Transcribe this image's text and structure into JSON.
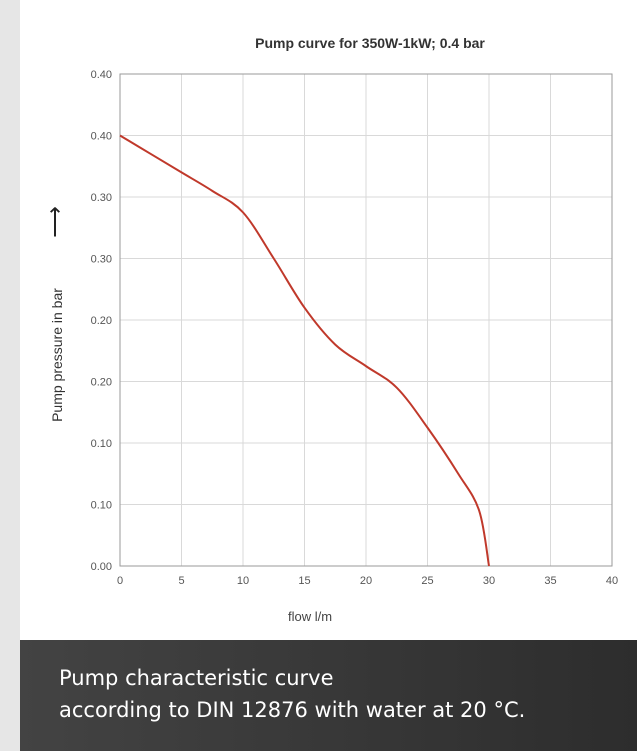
{
  "chart_data": {
    "type": "line",
    "title": "Pump curve for 350W-1kW; 0.4 bar",
    "xlabel": "flow l/m",
    "ylabel": "Pump pressure in bar",
    "ylabel_arrow": "⟶",
    "x_ticks": [
      "0",
      "5",
      "10",
      "15",
      "20",
      "25",
      "30",
      "35",
      "40"
    ],
    "y_ticks": [
      "0.00",
      "0.10",
      "0.10",
      "0.20",
      "0.20",
      "0.30",
      "0.30",
      "0.40",
      "0.40"
    ],
    "xlim": [
      0,
      40
    ],
    "ylim": [
      0,
      0.8
    ],
    "grid": true,
    "series": [
      {
        "color": "#c0392b",
        "x": [
          0,
          2.5,
          5,
          7.5,
          10,
          12.5,
          15,
          17.5,
          20,
          22.5,
          25,
          27.5,
          29.2,
          30
        ],
        "y": [
          0.7,
          0.67,
          0.64,
          0.61,
          0.575,
          0.5,
          0.42,
          0.36,
          0.325,
          0.29,
          0.225,
          0.15,
          0.09,
          0.0
        ]
      }
    ]
  },
  "caption": {
    "line1": "Pump characteristic curve",
    "line2": "according to DIN 12876 with water at 20 °C."
  }
}
